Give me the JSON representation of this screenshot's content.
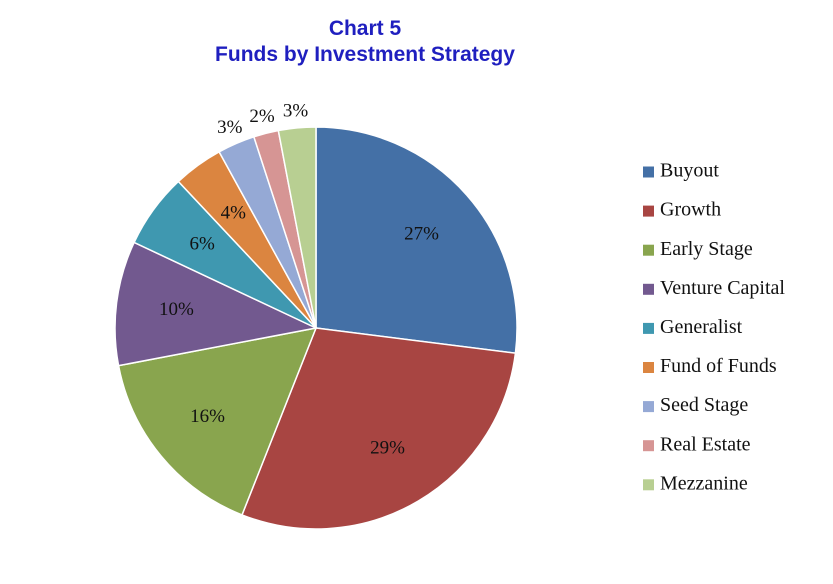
{
  "chart_data": {
    "type": "pie",
    "title": "Chart 5",
    "subtitle": "Funds by Investment Strategy",
    "slices": [
      {
        "label": "Buyout",
        "value": 27,
        "display": "27%",
        "color": "#4470a6"
      },
      {
        "label": "Growth",
        "value": 29,
        "display": "29%",
        "color": "#a84542"
      },
      {
        "label": "Early Stage",
        "value": 16,
        "display": "16%",
        "color": "#89a54e"
      },
      {
        "label": "Venture Capital",
        "value": 10,
        "display": "10%",
        "color": "#72598f"
      },
      {
        "label": "Generalist",
        "value": 6,
        "display": "6%",
        "color": "#3f98b0"
      },
      {
        "label": "Fund of Funds",
        "value": 4,
        "display": "4%",
        "color": "#db8540"
      },
      {
        "label": "Seed Stage",
        "value": 3,
        "display": "3%",
        "color": "#95a9d5"
      },
      {
        "label": "Real Estate",
        "value": 2,
        "display": "2%",
        "color": "#d69594"
      },
      {
        "label": "Mezzanine",
        "value": 3,
        "display": "3%",
        "color": "#b8cf92"
      }
    ],
    "legend_position": "right"
  }
}
